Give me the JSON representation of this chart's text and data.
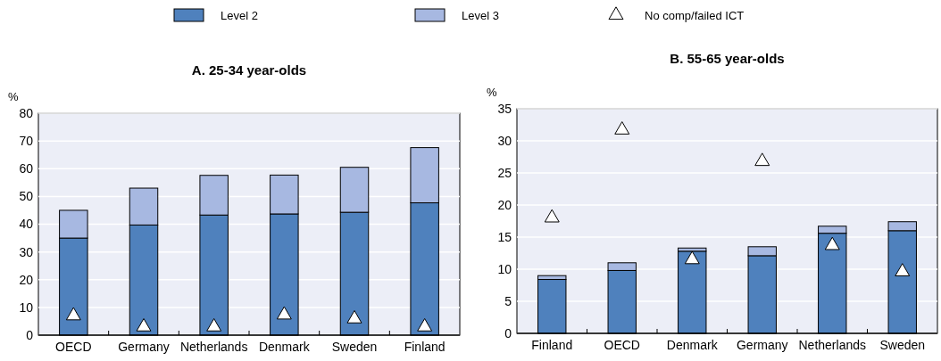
{
  "chart_data": [
    {
      "type": "bar",
      "title": "A. 25-34 year-olds",
      "ylabel": "%",
      "stacked": true,
      "legend": "top",
      "grid": "y",
      "marker": "triangle",
      "categories": [
        "OECD",
        "Germany",
        "Netherlands",
        "Denmark",
        "Sweden",
        "Finland"
      ],
      "ylim": [
        0,
        80
      ],
      "yticks": [
        0,
        10,
        20,
        30,
        40,
        50,
        60,
        70,
        80
      ],
      "series": [
        {
          "name": "Level 2",
          "color": "#4f81bd",
          "values": [
            35,
            39.7,
            43.3,
            43.7,
            44.3,
            47.7
          ]
        },
        {
          "name": "Level 3",
          "color": "#a7b8e1",
          "values": [
            10,
            13.3,
            14.3,
            14,
            16.2,
            19.9
          ]
        },
        {
          "name": "No comp/failed ICT",
          "type": "scatter",
          "color": "#ffffff",
          "x": [
            "OECD",
            "Germany",
            "Netherlands",
            "Denmark",
            "Sweden",
            "Finland"
          ],
          "values": [
            7,
            3,
            3,
            7.3,
            5.9,
            3
          ]
        }
      ]
    },
    {
      "type": "bar",
      "title": "B. 55-65 year-olds",
      "ylabel": "%",
      "stacked": true,
      "grid": "y",
      "marker": "triangle",
      "categories": [
        "Finland",
        "OECD",
        "Denmark",
        "Germany",
        "Netherlands",
        "Sweden"
      ],
      "ylim": [
        0,
        35
      ],
      "yticks": [
        0,
        5,
        10,
        15,
        20,
        25,
        30,
        35
      ],
      "series": [
        {
          "color": "#4f81bd",
          "values": [
            8.4,
            9.8,
            12.8,
            12.1,
            15.6,
            16
          ]
        },
        {
          "color": "#a7b8e1",
          "values": [
            0.6,
            1.2,
            0.5,
            1.4,
            1.1,
            1.4
          ]
        },
        {
          "type": "scatter",
          "color": "#ffffff",
          "x": [
            "Finland",
            "OECD",
            "Denmark",
            "Germany",
            "Netherlands",
            "Sweden"
          ],
          "values": [
            18,
            31.7,
            11.5,
            26.8,
            13.7,
            9.6
          ]
        }
      ]
    }
  ]
}
